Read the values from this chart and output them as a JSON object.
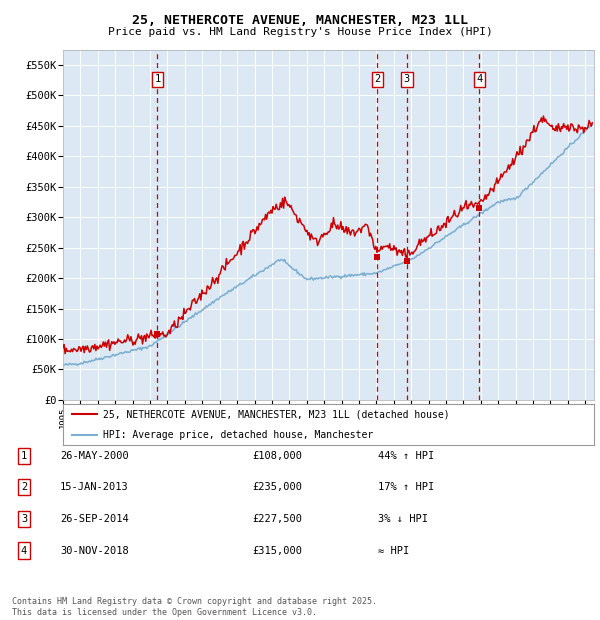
{
  "title": "25, NETHERCOTE AVENUE, MANCHESTER, M23 1LL",
  "subtitle": "Price paid vs. HM Land Registry's House Price Index (HPI)",
  "ylim": [
    0,
    575000
  ],
  "yticks": [
    0,
    50000,
    100000,
    150000,
    200000,
    250000,
    300000,
    350000,
    400000,
    450000,
    500000,
    550000
  ],
  "ytick_labels": [
    "£0",
    "£50K",
    "£100K",
    "£150K",
    "£200K",
    "£250K",
    "£300K",
    "£350K",
    "£400K",
    "£450K",
    "£500K",
    "£550K"
  ],
  "bg_color": "#dce9f5",
  "grid_color": "#ffffff",
  "red_line_color": "#cc0000",
  "blue_line_color": "#7aadcf",
  "marker_color": "#cc0000",
  "dashed_color": "#cc0000",
  "transactions": [
    {
      "year": 2000.42,
      "price": 108000,
      "label": "1"
    },
    {
      "year": 2013.05,
      "price": 235000,
      "label": "2"
    },
    {
      "year": 2014.75,
      "price": 227500,
      "label": "3"
    },
    {
      "year": 2018.92,
      "price": 315000,
      "label": "4"
    }
  ],
  "legend_items": [
    {
      "label": "25, NETHERCOTE AVENUE, MANCHESTER, M23 1LL (detached house)",
      "color": "#cc0000"
    },
    {
      "label": "HPI: Average price, detached house, Manchester",
      "color": "#7aadcf"
    }
  ],
  "table_rows": [
    {
      "num": "1",
      "date": "26-MAY-2000",
      "price": "£108,000",
      "rel": "44% ↑ HPI"
    },
    {
      "num": "2",
      "date": "15-JAN-2013",
      "price": "£235,000",
      "rel": "17% ↑ HPI"
    },
    {
      "num": "3",
      "date": "26-SEP-2014",
      "price": "£227,500",
      "rel": "3% ↓ HPI"
    },
    {
      "num": "4",
      "date": "30-NOV-2018",
      "price": "£315,000",
      "rel": "≈ HPI"
    }
  ],
  "footer": "Contains HM Land Registry data © Crown copyright and database right 2025.\nThis data is licensed under the Open Government Licence v3.0."
}
